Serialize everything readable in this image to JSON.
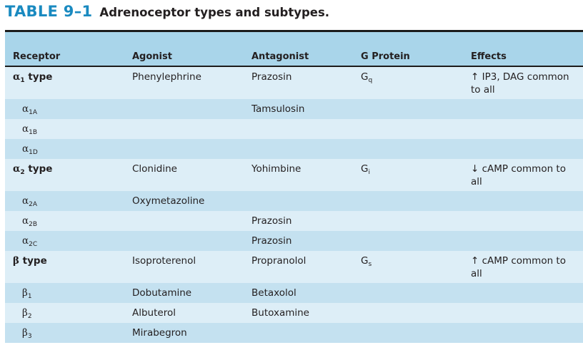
{
  "title": {
    "number": "TABLE 9–1",
    "caption": "Adrenoceptor types and subtypes."
  },
  "headers": [
    "Receptor",
    "Agonist",
    "Antagonist",
    "G Protein",
    "Effects"
  ],
  "rows": [
    {
      "greek": "α",
      "sub": "1",
      "suffix": " type",
      "agonist": "Phenylephrine",
      "antagonist": "Prazosin",
      "gp": "G",
      "gp_sub": "q",
      "effects": "↑ IP3, DAG common to all"
    },
    {
      "greek": "α",
      "sub": "1A",
      "suffix": "",
      "agonist": "",
      "antagonist": "Tamsulosin",
      "gp": "",
      "gp_sub": "",
      "effects": ""
    },
    {
      "greek": "α",
      "sub": "1B",
      "suffix": "",
      "agonist": "",
      "antagonist": "",
      "gp": "",
      "gp_sub": "",
      "effects": ""
    },
    {
      "greek": "α",
      "sub": "1D",
      "suffix": "",
      "agonist": "",
      "antagonist": "",
      "gp": "",
      "gp_sub": "",
      "effects": ""
    },
    {
      "greek": "α",
      "sub": "2",
      "suffix": " type",
      "agonist": "Clonidine",
      "antagonist": "Yohimbine",
      "gp": "G",
      "gp_sub": "i",
      "effects": "↓ cAMP common to all"
    },
    {
      "greek": "α",
      "sub": "2A",
      "suffix": "",
      "agonist": "Oxymetazoline",
      "antagonist": "",
      "gp": "",
      "gp_sub": "",
      "effects": ""
    },
    {
      "greek": "α",
      "sub": "2B",
      "suffix": "",
      "agonist": "",
      "antagonist": "Prazosin",
      "gp": "",
      "gp_sub": "",
      "effects": ""
    },
    {
      "greek": "α",
      "sub": "2C",
      "suffix": "",
      "agonist": "",
      "antagonist": "Prazosin",
      "gp": "",
      "gp_sub": "",
      "effects": ""
    },
    {
      "greek": "β",
      "sub": "",
      "suffix": " type",
      "agonist": "Isoproterenol",
      "antagonist": "Propranolol",
      "gp": "G",
      "gp_sub": "s",
      "effects": "↑ cAMP common to all"
    },
    {
      "greek": "β",
      "sub": "1",
      "suffix": "",
      "agonist": "Dobutamine",
      "antagonist": "Betaxolol",
      "gp": "",
      "gp_sub": "",
      "effects": ""
    },
    {
      "greek": "β",
      "sub": "2",
      "suffix": "",
      "agonist": "Albuterol",
      "antagonist": "Butoxamine",
      "gp": "",
      "gp_sub": "",
      "effects": ""
    },
    {
      "greek": "β",
      "sub": "3",
      "suffix": "",
      "agonist": "Mirabegron",
      "antagonist": "",
      "gp": "",
      "gp_sub": "",
      "effects": ""
    }
  ]
}
